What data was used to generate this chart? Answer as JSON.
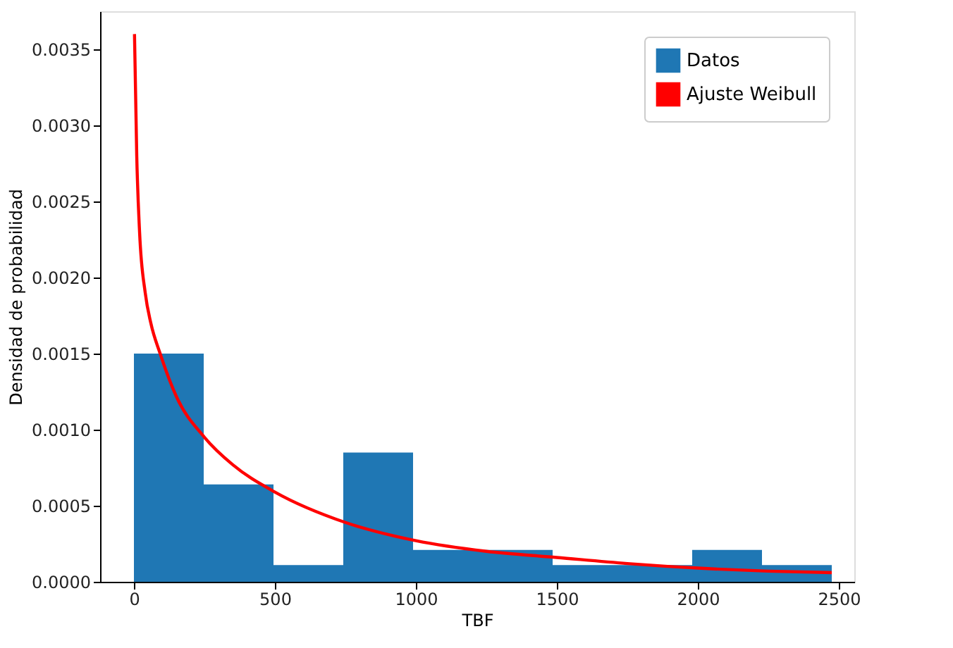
{
  "chart_data": {
    "type": "histogram",
    "xlabel": "TBF",
    "ylabel": "Densidad de probabilidad",
    "xlim": [
      -120,
      2555
    ],
    "ylim": [
      0,
      0.00375
    ],
    "xticks": [
      0,
      500,
      1000,
      1500,
      2000,
      2500
    ],
    "yticks": [
      {
        "value": 0,
        "label": "0.0000"
      },
      {
        "value": 0.0005,
        "label": "0.0005"
      },
      {
        "value": 0.001,
        "label": "0.0010"
      },
      {
        "value": 0.0015,
        "label": "0.0015"
      },
      {
        "value": 0.002,
        "label": "0.0020"
      },
      {
        "value": 0.0025,
        "label": "0.0025"
      },
      {
        "value": 0.003,
        "label": "0.0030"
      },
      {
        "value": 0.0035,
        "label": "0.0035"
      }
    ],
    "grid": false,
    "legend": "top right",
    "series": [
      {
        "name": "Datos",
        "type": "histogram",
        "color": "#1f77b4",
        "bins": [
          0,
          247.5,
          495,
          742.5,
          990,
          1237.5,
          1485,
          1732.5,
          1980,
          2227.5,
          2475
        ],
        "values": [
          0.0015,
          0.00064,
          0.00011,
          0.00085,
          0.00021,
          0.00021,
          0.00011,
          0.00011,
          0.00021,
          0.00011
        ]
      },
      {
        "name": "Ajuste Weibull",
        "type": "line",
        "color": "#ff0000",
        "line_style": "solid",
        "marker": "none",
        "x": [
          2,
          10,
          20,
          40,
          60,
          93,
          150,
          250,
          350,
          500,
          750,
          1000,
          1250,
          1500,
          1750,
          2000,
          2250,
          2475
        ],
        "values": [
          0.0036,
          0.0028,
          0.0023,
          0.0019,
          0.0017,
          0.0015,
          0.00122,
          0.00095,
          0.00077,
          0.00059,
          0.00039,
          0.00027,
          0.0002,
          0.00016,
          0.00012,
          9e-05,
          7e-05,
          6e-05
        ]
      }
    ]
  }
}
